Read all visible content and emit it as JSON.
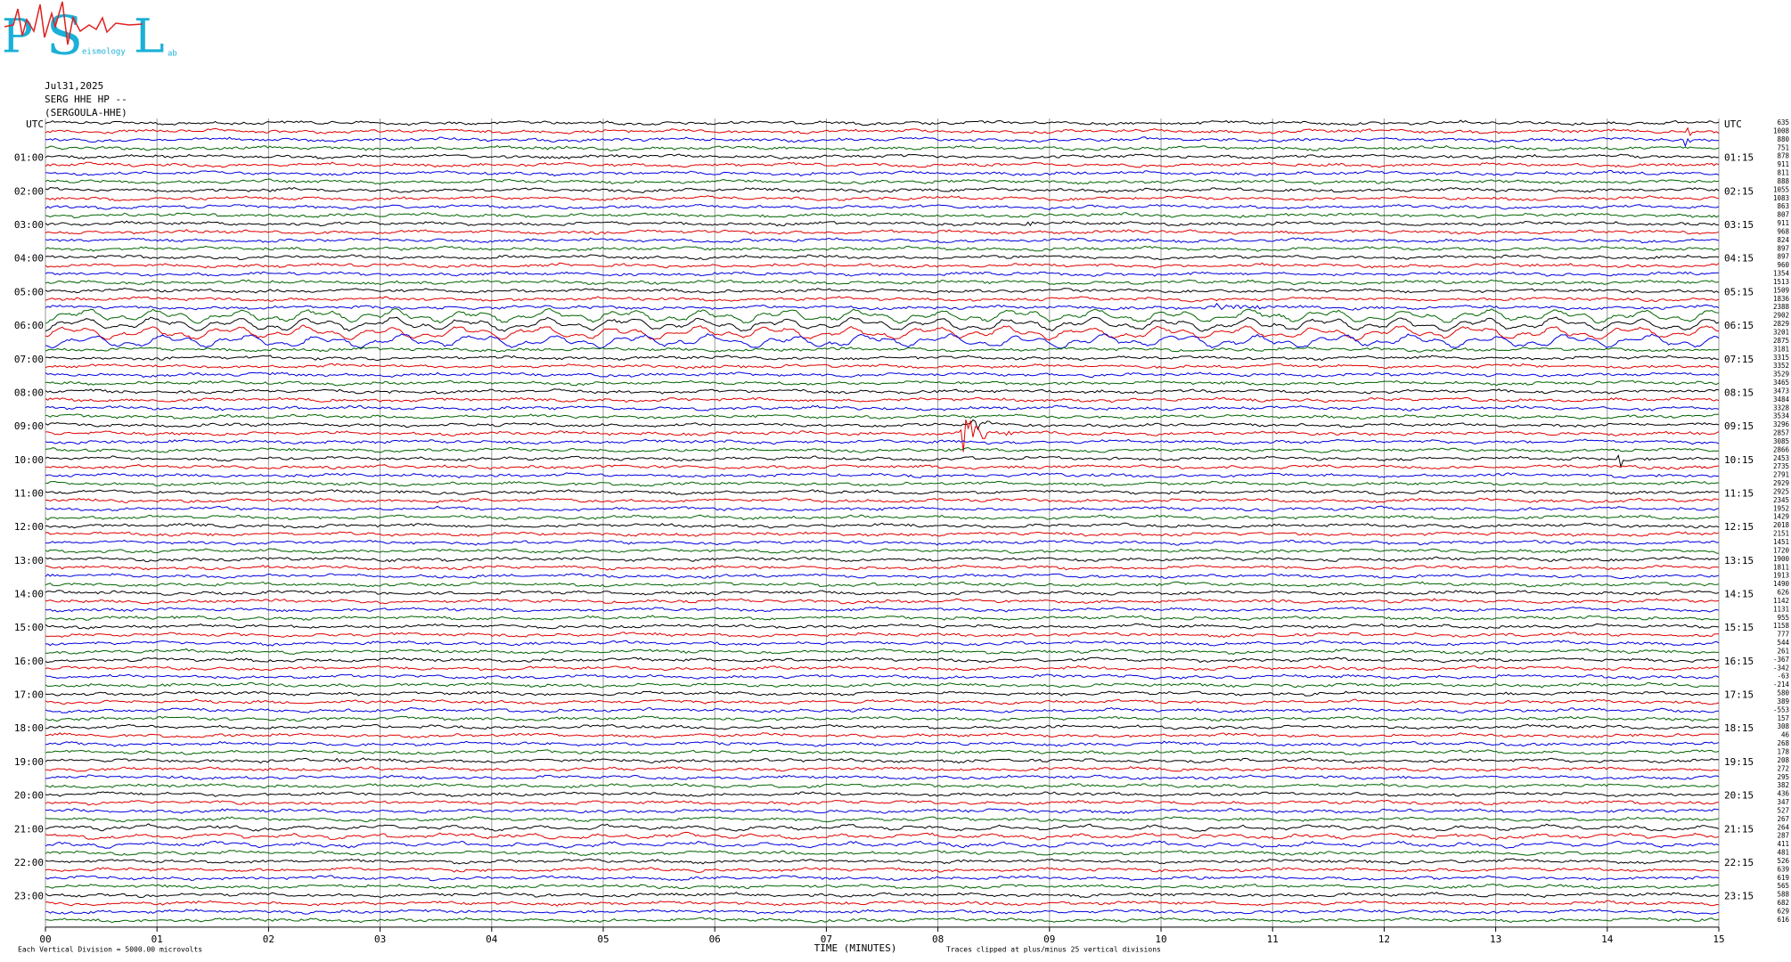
{
  "header": {
    "date": "Jul31,2025",
    "station": "SERG HHE HP --",
    "name": "(SERGOULA-HHE)"
  },
  "logo": {
    "letters": [
      "P",
      "S",
      "L"
    ],
    "small": [
      "eismology",
      "ab"
    ]
  },
  "left_labels": [
    "UTC",
    "01:00",
    "02:00",
    "03:00",
    "04:00",
    "05:00",
    "06:00",
    "07:00",
    "08:00",
    "09:00",
    "10:00",
    "11:00",
    "12:00",
    "13:00",
    "14:00",
    "15:00",
    "16:00",
    "17:00",
    "18:00",
    "19:00",
    "20:00",
    "21:00",
    "22:00",
    "23:00"
  ],
  "right_labels": [
    "UTC",
    "01:15",
    "02:15",
    "03:15",
    "04:15",
    "05:15",
    "06:15",
    "07:15",
    "08:15",
    "09:15",
    "10:15",
    "11:15",
    "12:15",
    "13:15",
    "14:15",
    "15:15",
    "16:15",
    "17:15",
    "18:15",
    "19:15",
    "20:15",
    "21:15",
    "22:15",
    "23:15"
  ],
  "trace_values": [
    635,
    1008,
    880,
    751,
    878,
    911,
    811,
    888,
    1055,
    1083,
    863,
    807,
    911,
    968,
    824,
    897,
    897,
    960,
    1354,
    1513,
    1509,
    1836,
    2388,
    2902,
    2829,
    3201,
    2875,
    3181,
    3315,
    3352,
    3529,
    3465,
    3473,
    3484,
    3328,
    3534,
    3296,
    2857,
    3085,
    2866,
    2453,
    2735,
    2791,
    2929,
    2925,
    2345,
    1952,
    1429,
    2018,
    2151,
    1451,
    1720,
    1900,
    1811,
    1913,
    1490,
    626,
    1142,
    1131,
    955,
    1158,
    777,
    544,
    261,
    -367,
    -342,
    -63,
    -214,
    580,
    389,
    -553,
    157,
    308,
    46,
    268,
    178,
    208,
    272,
    295,
    382,
    436,
    347,
    527,
    267,
    264,
    287,
    411,
    481,
    526,
    639,
    619,
    565,
    588,
    682,
    629,
    616
  ],
  "x_labels": [
    "00",
    "01",
    "02",
    "03",
    "04",
    "05",
    "06",
    "07",
    "08",
    "09",
    "10",
    "11",
    "12",
    "13",
    "14",
    "15"
  ],
  "x_title": "TIME (MINUTES)",
  "footer_left": "Each Vertical Division = 5000.00 microvolts",
  "footer_note": "Traces clipped at plus/minus 25 vertical divisions"
}
